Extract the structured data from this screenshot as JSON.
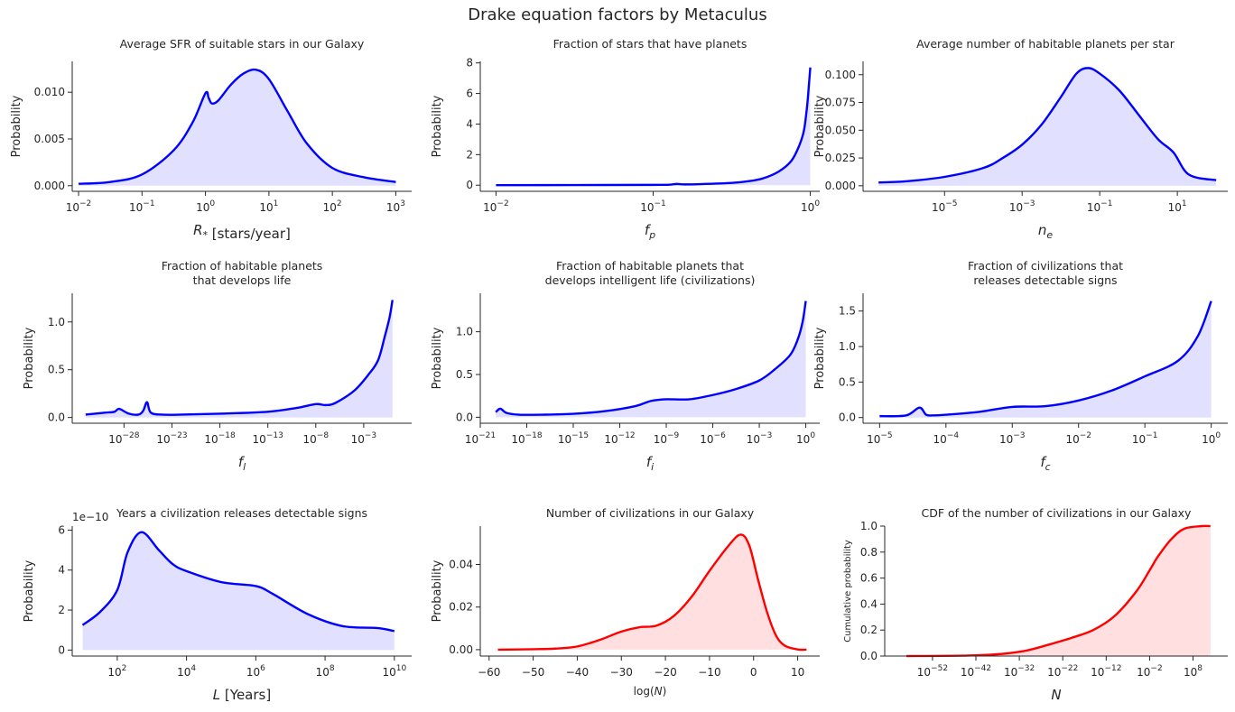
{
  "figure": {
    "title": "Drake equation factors by Metaculus"
  },
  "chart_data": [
    {
      "type": "area",
      "title": "Average SFR of suitable stars in our Galaxy",
      "xlabel": "R* [stars/year]",
      "ylabel": "Probability",
      "xscale": "log",
      "xlim": [
        -2.1,
        3.25
      ],
      "ylim": [
        -0.0006,
        0.0133
      ],
      "xticks": [
        -2,
        -1,
        0,
        1,
        2,
        3
      ],
      "yticks": [
        0.0,
        0.005,
        0.01
      ],
      "ytick_labels": [
        "0.000",
        "0.005",
        "0.010"
      ],
      "color": "#0000ff",
      "fill": "#e1e1ff",
      "x": [
        -2,
        -1.5,
        -1,
        -0.5,
        -0.2,
        0,
        0.05,
        0.1,
        0.2,
        0.4,
        0.6,
        0.8,
        1,
        1.3,
        1.6,
        2,
        2.5,
        3
      ],
      "y": [
        0.0002,
        0.0004,
        0.0012,
        0.0038,
        0.0068,
        0.0099,
        0.0094,
        0.0088,
        0.0091,
        0.0108,
        0.012,
        0.0124,
        0.0114,
        0.0079,
        0.0045,
        0.0019,
        0.0009,
        0.0004
      ]
    },
    {
      "type": "area",
      "title": "Fraction of stars that have planets",
      "xlabel": "f_p",
      "ylabel": "Probability",
      "xscale": "log",
      "xlim": [
        -2.1,
        0.06
      ],
      "ylim": [
        -0.4,
        8.1
      ],
      "xticks": [
        -2,
        -1,
        0
      ],
      "yticks": [
        0,
        2,
        4,
        6,
        8
      ],
      "ytick_labels": [
        "0",
        "2",
        "4",
        "6",
        "8"
      ],
      "color": "#0000ff",
      "fill": "#e1e1ff",
      "x": [
        -2,
        -1.5,
        -1,
        -0.9,
        -0.85,
        -0.8,
        -0.7,
        -0.5,
        -0.4,
        -0.3,
        -0.2,
        -0.12,
        -0.07,
        -0.04,
        -0.02,
        -0.01,
        0
      ],
      "y": [
        0.0,
        0.01,
        0.02,
        0.03,
        0.08,
        0.05,
        0.07,
        0.15,
        0.25,
        0.45,
        0.9,
        1.6,
        2.6,
        3.6,
        5.2,
        6.4,
        7.7
      ]
    },
    {
      "type": "area",
      "title": "Average number of habitable planets per star",
      "xlabel": "n_e",
      "ylabel": "Probability",
      "xscale": "log",
      "xlim": [
        -7.1,
        2.3
      ],
      "ylim": [
        -0.005,
        0.112
      ],
      "xticks": [
        -5,
        -3,
        -1,
        1
      ],
      "yticks": [
        0.0,
        0.025,
        0.05,
        0.075,
        0.1
      ],
      "ytick_labels": [
        "0.000",
        "0.025",
        "0.050",
        "0.075",
        "0.100"
      ],
      "color": "#0000ff",
      "fill": "#e1e1ff",
      "x": [
        -6.7,
        -6,
        -5,
        -4,
        -3.5,
        -3,
        -2.5,
        -2,
        -1.6,
        -1.3,
        -1,
        -0.5,
        0,
        0.5,
        0.9,
        1.3,
        2
      ],
      "y": [
        0.003,
        0.004,
        0.008,
        0.016,
        0.025,
        0.037,
        0.055,
        0.08,
        0.101,
        0.106,
        0.101,
        0.086,
        0.064,
        0.042,
        0.03,
        0.01,
        0.005
      ]
    },
    {
      "type": "area",
      "title": "Fraction of habitable planets\nthat develops life",
      "xlabel": "f_l",
      "ylabel": "Probability",
      "xscale": "log",
      "xlim": [
        -33.4,
        2.0
      ],
      "ylim": [
        -0.06,
        1.3
      ],
      "xticks": [
        -28,
        -23,
        -18,
        -13,
        -8,
        -3
      ],
      "yticks": [
        0.0,
        0.5,
        1.0
      ],
      "ytick_labels": [
        "0.0",
        "0.5",
        "1.0"
      ],
      "color": "#0000ff",
      "fill": "#e1e1ff",
      "x": [
        -32,
        -30,
        -29,
        -28.5,
        -27.5,
        -26.5,
        -26,
        -25.6,
        -25.2,
        -24,
        -22,
        -18,
        -13,
        -10,
        -8,
        -7,
        -6,
        -4,
        -2.5,
        -1.5,
        -0.8,
        -0.3,
        0
      ],
      "y": [
        0.03,
        0.05,
        0.06,
        0.09,
        0.04,
        0.03,
        0.07,
        0.16,
        0.05,
        0.03,
        0.03,
        0.04,
        0.06,
        0.1,
        0.14,
        0.13,
        0.15,
        0.28,
        0.45,
        0.6,
        0.85,
        1.05,
        1.23
      ]
    },
    {
      "type": "area",
      "title": "Fraction of habitable planets that\ndevelops intelligent life (civilizations)",
      "xlabel": "f_i",
      "ylabel": "Probability",
      "xscale": "log",
      "xlim": [
        -21.0,
        0.9
      ],
      "ylim": [
        -0.07,
        1.45
      ],
      "xticks": [
        -21,
        -18,
        -15,
        -12,
        -9,
        -6,
        -3,
        0
      ],
      "yticks": [
        0.0,
        0.5,
        1.0
      ],
      "ytick_labels": [
        "0.0",
        "0.5",
        "1.0"
      ],
      "color": "#0000ff",
      "fill": "#e1e1ff",
      "x": [
        -20,
        -19.7,
        -19.3,
        -18.5,
        -17,
        -15,
        -13,
        -11,
        -10,
        -9,
        -7.5,
        -6,
        -4.5,
        -3,
        -2,
        -1,
        -0.5,
        -0.2,
        0
      ],
      "y": [
        0.06,
        0.1,
        0.05,
        0.03,
        0.03,
        0.04,
        0.07,
        0.13,
        0.19,
        0.21,
        0.21,
        0.26,
        0.33,
        0.43,
        0.56,
        0.73,
        0.92,
        1.12,
        1.36
      ]
    },
    {
      "type": "area",
      "title": "Fraction of civilizations that\nreleases detectable signs",
      "xlabel": "f_c",
      "ylabel": "Probability",
      "xscale": "log",
      "xlim": [
        -5.25,
        0.25
      ],
      "ylim": [
        -0.08,
        1.75
      ],
      "xticks": [
        -5,
        -4,
        -3,
        -2,
        -1,
        0
      ],
      "yticks": [
        0.0,
        0.5,
        1.0,
        1.5
      ],
      "ytick_labels": [
        "0.0",
        "0.5",
        "1.0",
        "1.5"
      ],
      "color": "#0000ff",
      "fill": "#e1e1ff",
      "x": [
        -5,
        -4.6,
        -4.4,
        -4.3,
        -4.2,
        -4.0,
        -3.5,
        -3.0,
        -2.5,
        -2.0,
        -1.5,
        -1.0,
        -0.5,
        -0.2,
        0
      ],
      "y": [
        0.02,
        0.03,
        0.14,
        0.04,
        0.03,
        0.04,
        0.08,
        0.15,
        0.16,
        0.24,
        0.38,
        0.58,
        0.8,
        1.15,
        1.64
      ]
    },
    {
      "type": "area",
      "title": "Years a civilization releases detectable signs",
      "xlabel": "L [Years]",
      "ylabel": "Probability",
      "xscale": "log",
      "offset_label": "1e−10",
      "xlim": [
        0.7,
        10.5
      ],
      "ylim": [
        -0.3,
        6.2
      ],
      "xticks": [
        2,
        4,
        6,
        8,
        10
      ],
      "yticks": [
        0,
        2,
        4,
        6
      ],
      "ytick_labels": [
        "0",
        "2",
        "4",
        "6"
      ],
      "color": "#0000ff",
      "fill": "#e1e1ff",
      "x": [
        1,
        1.5,
        2,
        2.3,
        2.7,
        3.2,
        3.6,
        4,
        5,
        6,
        6.5,
        7.5,
        8.5,
        9.5,
        10
      ],
      "y": [
        1.25,
        1.9,
        3.0,
        4.9,
        5.9,
        5.0,
        4.3,
        3.95,
        3.4,
        3.2,
        2.8,
        1.8,
        1.2,
        1.1,
        0.95
      ]
    },
    {
      "type": "area",
      "title": "Number of civilizations in our Galaxy",
      "xlabel": "log(N)",
      "ylabel": "Probability",
      "xscale": "linear",
      "xlim": [
        -62,
        15
      ],
      "ylim": [
        -0.003,
        0.058
      ],
      "xticks": [
        -60,
        -50,
        -40,
        -30,
        -20,
        -10,
        0,
        10
      ],
      "yticks": [
        0.0,
        0.02,
        0.04
      ],
      "ytick_labels": [
        "0.00",
        "0.02",
        "0.04"
      ],
      "color": "#ff0000",
      "fill": "#ffdfdf",
      "x": [
        -58,
        -50,
        -45,
        -40,
        -35,
        -30,
        -26,
        -22,
        -18,
        -14,
        -10,
        -6,
        -3,
        -1,
        1,
        3,
        5,
        7,
        10,
        12
      ],
      "y": [
        0.0,
        0.0002,
        0.0005,
        0.0015,
        0.0045,
        0.0085,
        0.0105,
        0.0113,
        0.016,
        0.025,
        0.037,
        0.048,
        0.054,
        0.049,
        0.033,
        0.018,
        0.007,
        0.002,
        0.0001,
        0.0
      ]
    },
    {
      "type": "area",
      "title": "CDF of the number of civilizations in our Galaxy",
      "xlabel": "N",
      "ylabel": "Cumulative probability",
      "xscale": "log",
      "xlim": [
        -63,
        16
      ],
      "ylim": [
        0.0,
        1.0
      ],
      "xticks": [
        -52,
        -42,
        -32,
        -22,
        -12,
        -2,
        8
      ],
      "yticks": [
        0.0,
        0.2,
        0.4,
        0.6,
        0.8,
        1.0
      ],
      "ytick_labels": [
        "0.0",
        "0.2",
        "0.4",
        "0.6",
        "0.8",
        "1.0"
      ],
      "color": "#ff0000",
      "fill": "#ffdfdf",
      "x": [
        -58,
        -50,
        -45,
        -40,
        -35,
        -30,
        -25,
        -20,
        -15,
        -10,
        -5,
        -2,
        0,
        3,
        6,
        10,
        12
      ],
      "y": [
        0.0,
        0.001,
        0.003,
        0.008,
        0.02,
        0.045,
        0.09,
        0.14,
        0.2,
        0.31,
        0.5,
        0.66,
        0.77,
        0.9,
        0.98,
        1.0,
        1.0
      ]
    }
  ]
}
